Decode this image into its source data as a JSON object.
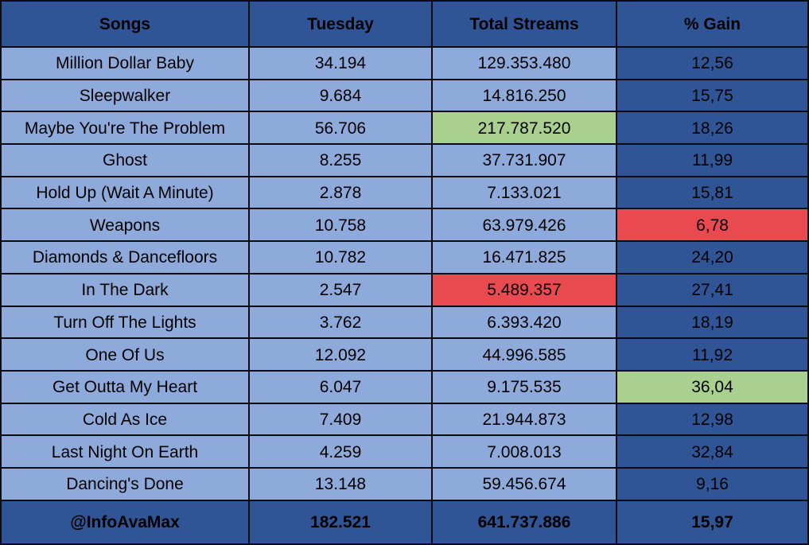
{
  "columns": [
    "Songs",
    "Tuesday",
    "Total Streams",
    "% Gain"
  ],
  "rows": [
    {
      "song": "Million Dollar Baby",
      "tuesday": "34.194",
      "total": "129.353.480",
      "gain": "12,56",
      "total_hl": "",
      "gain_hl": ""
    },
    {
      "song": "Sleepwalker",
      "tuesday": "9.684",
      "total": "14.816.250",
      "gain": "15,75",
      "total_hl": "",
      "gain_hl": ""
    },
    {
      "song": "Maybe You're The Problem",
      "tuesday": "56.706",
      "total": "217.787.520",
      "gain": "18,26",
      "total_hl": "green",
      "gain_hl": ""
    },
    {
      "song": "Ghost",
      "tuesday": "8.255",
      "total": "37.731.907",
      "gain": "11,99",
      "total_hl": "",
      "gain_hl": ""
    },
    {
      "song": "Hold Up (Wait A Minute)",
      "tuesday": "2.878",
      "total": "7.133.021",
      "gain": "15,81",
      "total_hl": "",
      "gain_hl": ""
    },
    {
      "song": "Weapons",
      "tuesday": "10.758",
      "total": "63.979.426",
      "gain": "6,78",
      "total_hl": "",
      "gain_hl": "red"
    },
    {
      "song": "Diamonds & Dancefloors",
      "tuesday": "10.782",
      "total": "16.471.825",
      "gain": "24,20",
      "total_hl": "",
      "gain_hl": ""
    },
    {
      "song": "In The Dark",
      "tuesday": "2.547",
      "total": "5.489.357",
      "gain": "27,41",
      "total_hl": "red",
      "gain_hl": ""
    },
    {
      "song": "Turn Off The Lights",
      "tuesday": "3.762",
      "total": "6.393.420",
      "gain": "18,19",
      "total_hl": "",
      "gain_hl": ""
    },
    {
      "song": "One Of Us",
      "tuesday": "12.092",
      "total": "44.996.585",
      "gain": "11,92",
      "total_hl": "",
      "gain_hl": ""
    },
    {
      "song": "Get Outta My Heart",
      "tuesday": "6.047",
      "total": "9.175.535",
      "gain": "36,04",
      "total_hl": "",
      "gain_hl": "green"
    },
    {
      "song": "Cold As Ice",
      "tuesday": "7.409",
      "total": "21.944.873",
      "gain": "12,98",
      "total_hl": "",
      "gain_hl": ""
    },
    {
      "song": "Last Night On Earth",
      "tuesday": "4.259",
      "total": "7.008.013",
      "gain": "32,84",
      "total_hl": "",
      "gain_hl": ""
    },
    {
      "song": "Dancing's Done",
      "tuesday": "13.148",
      "total": "59.456.674",
      "gain": "9,16",
      "total_hl": "",
      "gain_hl": ""
    }
  ],
  "footer": {
    "song": "@InfoAvaMax",
    "tuesday": "182.521",
    "total": "641.737.886",
    "gain": "15,97"
  },
  "colors": {
    "header_bg": "#2f5597",
    "row_bg": "#8eaadb",
    "gain_col_bg": "#2f5597",
    "highlight_green": "#a9d08e",
    "highlight_red": "#e84a4f",
    "grid_line": "#0b0b14"
  }
}
